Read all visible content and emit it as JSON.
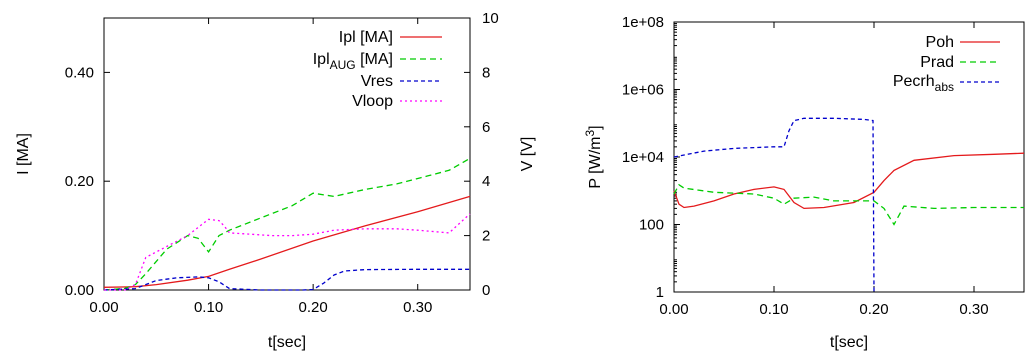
{
  "chart_data": [
    {
      "type": "line",
      "xlabel": "t[sec]",
      "ylabel": "I [MA]",
      "y2label": "V [V]",
      "xlim": [
        0,
        0.35
      ],
      "ylim": [
        0,
        0.5
      ],
      "y2lim": [
        0,
        10
      ],
      "xticks": [
        "0.00",
        "0.10",
        "0.20",
        "0.30"
      ],
      "xtick_values": [
        0,
        0.1,
        0.2,
        0.3
      ],
      "yticks": [
        "0.00",
        "0.20",
        "0.40"
      ],
      "ytick_values": [
        0,
        0.2,
        0.4
      ],
      "y2ticks": [
        "0",
        "2",
        "4",
        "6",
        "8",
        "10"
      ],
      "y2tick_values": [
        0,
        2,
        4,
        6,
        8,
        10
      ],
      "legend_position": "top-right",
      "grid": false,
      "series": [
        {
          "name": "Ipl [MA]",
          "axis": "left",
          "color": "#e41a1c",
          "dash": "solid",
          "x": [
            0,
            0.03,
            0.05,
            0.08,
            0.1,
            0.12,
            0.15,
            0.2,
            0.25,
            0.3,
            0.35
          ],
          "y": [
            0.005,
            0.006,
            0.01,
            0.018,
            0.025,
            0.038,
            0.057,
            0.09,
            0.118,
            0.144,
            0.172
          ]
        },
        {
          "name": "Ipl_AUG [MA]",
          "name_main": "Ipl",
          "name_sub": "AUG",
          "name_suffix": " [MA]",
          "axis": "left",
          "color": "#00cc00",
          "dash": "6,4",
          "x": [
            0,
            0.02,
            0.03,
            0.04,
            0.06,
            0.08,
            0.09,
            0.1,
            0.11,
            0.12,
            0.14,
            0.16,
            0.18,
            0.2,
            0.22,
            0.25,
            0.28,
            0.31,
            0.33,
            0.35
          ],
          "y": [
            0.0,
            0.003,
            0.01,
            0.03,
            0.075,
            0.1,
            0.095,
            0.07,
            0.1,
            0.11,
            0.125,
            0.14,
            0.155,
            0.178,
            0.172,
            0.185,
            0.195,
            0.21,
            0.22,
            0.242
          ]
        },
        {
          "name": "Vres",
          "axis": "right",
          "color": "#0000cc",
          "dash": "4,3",
          "x": [
            0,
            0.03,
            0.05,
            0.07,
            0.09,
            0.1,
            0.11,
            0.12,
            0.15,
            0.19,
            0.2,
            0.21,
            0.22,
            0.23,
            0.25,
            0.3,
            0.35
          ],
          "y": [
            0.0,
            0.05,
            0.35,
            0.45,
            0.48,
            0.45,
            0.3,
            0.05,
            0.0,
            0.0,
            0.02,
            0.25,
            0.55,
            0.7,
            0.75,
            0.76,
            0.76
          ]
        },
        {
          "name": "Vloop",
          "axis": "right",
          "color": "#ff00ff",
          "dash": "2,3",
          "x": [
            0,
            0.02,
            0.03,
            0.04,
            0.06,
            0.08,
            0.09,
            0.1,
            0.11,
            0.115,
            0.12,
            0.14,
            0.16,
            0.18,
            0.2,
            0.22,
            0.25,
            0.28,
            0.3,
            0.33,
            0.35
          ],
          "y": [
            0.0,
            0.0,
            0.2,
            1.2,
            1.6,
            2.0,
            2.3,
            2.6,
            2.55,
            2.35,
            2.1,
            2.05,
            2.0,
            2.0,
            2.05,
            2.2,
            2.25,
            2.25,
            2.2,
            2.1,
            2.8
          ]
        }
      ]
    },
    {
      "type": "line",
      "xlabel": "t[sec]",
      "ylabel": "P [W/m³]",
      "ylabel_main": "P [W/m",
      "ylabel_sup": "3",
      "ylabel_end": "]",
      "yscale": "log",
      "xlim": [
        0,
        0.35
      ],
      "ylim": [
        1,
        100000000
      ],
      "xticks": [
        "0.00",
        "0.10",
        "0.20",
        "0.30"
      ],
      "xtick_values": [
        0,
        0.1,
        0.2,
        0.3
      ],
      "yticks": [
        "1",
        "100",
        "1e+04",
        "1e+06",
        "1e+08"
      ],
      "ytick_values": [
        1,
        100,
        10000,
        1000000,
        100000000
      ],
      "legend_position": "top-right",
      "grid": false,
      "series": [
        {
          "name": "Poh",
          "color": "#e41a1c",
          "dash": "solid",
          "x": [
            0,
            0.005,
            0.01,
            0.02,
            0.04,
            0.06,
            0.08,
            0.1,
            0.11,
            0.12,
            0.13,
            0.15,
            0.18,
            0.2,
            0.21,
            0.22,
            0.24,
            0.28,
            0.32,
            0.35
          ],
          "y": [
            1000,
            400,
            320,
            350,
            500,
            800,
            1100,
            1300,
            1100,
            450,
            300,
            320,
            450,
            900,
            2000,
            4000,
            8000,
            11000,
            12000,
            13000
          ]
        },
        {
          "name": "Prad",
          "color": "#00cc00",
          "dash": "6,4",
          "x": [
            0,
            0.005,
            0.01,
            0.04,
            0.08,
            0.1,
            0.11,
            0.12,
            0.14,
            0.16,
            0.18,
            0.2,
            0.21,
            0.22,
            0.23,
            0.26,
            0.3,
            0.35
          ],
          "y": [
            800,
            1500,
            1200,
            900,
            800,
            600,
            400,
            600,
            650,
            500,
            500,
            500,
            300,
            100,
            350,
            300,
            320,
            320
          ]
        },
        {
          "name": "Pecrh_abs",
          "name_main": "Pecrh",
          "name_sub": "abs",
          "color": "#0000cc",
          "dash": "4,3",
          "x": [
            0,
            0.03,
            0.06,
            0.1,
            0.11,
            0.115,
            0.12,
            0.13,
            0.16,
            0.19,
            0.199,
            0.2
          ],
          "y": [
            10000,
            15000,
            18000,
            20000,
            20000,
            60000,
            120000,
            140000,
            140000,
            130000,
            120000,
            1
          ]
        }
      ]
    }
  ]
}
